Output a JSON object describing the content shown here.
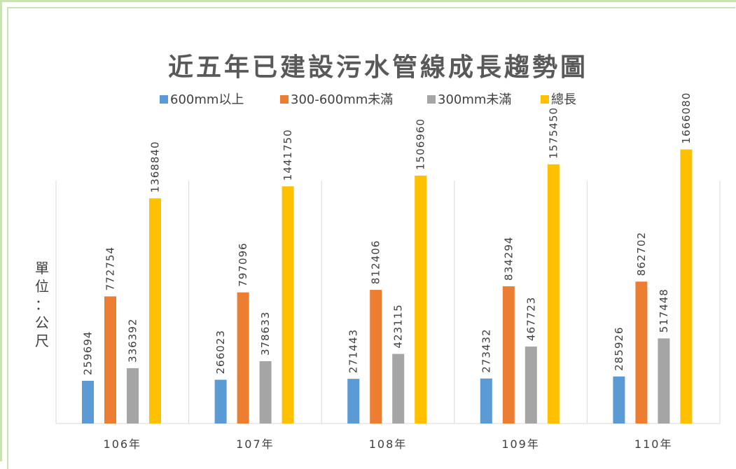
{
  "chart_data": {
    "type": "bar",
    "title": "近五年已建設污水管線成長趨勢圖",
    "ylabel": "單位：公尺",
    "xlabel": "",
    "categories": [
      "106年",
      "107年",
      "108年",
      "109年",
      "110年"
    ],
    "series": [
      {
        "name": "600mm以上",
        "color": "#5b9bd5",
        "values": [
          259694,
          266023,
          271443,
          273432,
          285926
        ]
      },
      {
        "name": "300-600mm未滿",
        "color": "#ed7d31",
        "values": [
          772754,
          797096,
          812406,
          834294,
          862702
        ]
      },
      {
        "name": "300mm未滿",
        "color": "#a5a5a5",
        "values": [
          336392,
          378633,
          423115,
          467723,
          517448
        ]
      },
      {
        "name": "總長",
        "color": "#ffc000",
        "values": [
          1368840,
          1441750,
          1506960,
          1575450,
          1666080
        ]
      }
    ],
    "ylim": [
      0,
      2000000
    ],
    "grid": "vertical category separators",
    "legend_position": "top"
  }
}
